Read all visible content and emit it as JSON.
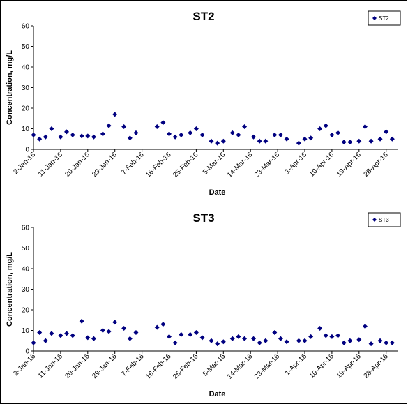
{
  "chart_data": [
    {
      "type": "scatter",
      "title": "ST2",
      "xlabel": "Date",
      "ylabel": "Concentration, mg/L",
      "ylim": [
        0,
        60
      ],
      "yticks": [
        "0",
        "10",
        "20",
        "30",
        "40",
        "50",
        "60"
      ],
      "xlim": [
        "2-Jan-16",
        "2-May-16"
      ],
      "xticks": [
        "2-Jan-16",
        "11-Jan-16",
        "20-Jan-16",
        "29-Jan-16",
        "7-Feb-16",
        "16-Feb-16",
        "25-Feb-16",
        "5-Mar-16",
        "14-Mar-16",
        "23-Mar-16",
        "1-Apr-16",
        "10-Apr-16",
        "19-Apr-16",
        "28-Apr-16"
      ],
      "grid": false,
      "legend": "top-right",
      "marker_color": "#000080",
      "series": [
        {
          "name": "ST2",
          "x": [
            "2-Jan-16",
            "4-Jan-16",
            "6-Jan-16",
            "8-Jan-16",
            "11-Jan-16",
            "13-Jan-16",
            "15-Jan-16",
            "18-Jan-16",
            "20-Jan-16",
            "22-Jan-16",
            "25-Jan-16",
            "27-Jan-16",
            "29-Jan-16",
            "1-Feb-16",
            "3-Feb-16",
            "5-Feb-16",
            "12-Feb-16",
            "14-Feb-16",
            "16-Feb-16",
            "18-Feb-16",
            "20-Feb-16",
            "23-Feb-16",
            "25-Feb-16",
            "27-Feb-16",
            "1-Mar-16",
            "3-Mar-16",
            "5-Mar-16",
            "8-Mar-16",
            "10-Mar-16",
            "12-Mar-16",
            "15-Mar-16",
            "17-Mar-16",
            "19-Mar-16",
            "22-Mar-16",
            "24-Mar-16",
            "26-Mar-16",
            "30-Mar-16",
            "1-Apr-16",
            "3-Apr-16",
            "6-Apr-16",
            "8-Apr-16",
            "10-Apr-16",
            "12-Apr-16",
            "14-Apr-16",
            "16-Apr-16",
            "19-Apr-16",
            "21-Apr-16",
            "23-Apr-16",
            "26-Apr-16",
            "28-Apr-16",
            "30-Apr-16"
          ],
          "y": [
            7,
            5,
            6,
            10,
            6,
            8.5,
            7,
            6.5,
            6.5,
            6,
            7.5,
            11.5,
            17,
            11,
            5.5,
            8,
            11,
            13,
            7.5,
            6,
            7,
            8,
            10,
            7,
            4,
            3,
            4,
            8,
            7,
            11,
            6,
            4,
            4,
            7,
            7,
            5,
            3,
            5,
            5.5,
            10,
            11.5,
            7,
            8,
            3.5,
            3.5,
            4,
            11,
            4,
            5,
            8.5,
            5
          ]
        }
      ]
    },
    {
      "type": "scatter",
      "title": "ST3",
      "xlabel": "Date",
      "ylabel": "Concentration, mg/L",
      "ylim": [
        0,
        60
      ],
      "yticks": [
        "0",
        "10",
        "20",
        "30",
        "40",
        "50",
        "60"
      ],
      "xlim": [
        "2-Jan-16",
        "2-May-16"
      ],
      "xticks": [
        "2-Jan-16",
        "11-Jan-16",
        "20-Jan-16",
        "29-Jan-16",
        "7-Feb-16",
        "16-Feb-16",
        "25-Feb-16",
        "5-Mar-16",
        "14-Mar-16",
        "23-Mar-16",
        "1-Apr-16",
        "10-Apr-16",
        "19-Apr-16",
        "28-Apr-16"
      ],
      "grid": false,
      "legend": "top-right",
      "marker_color": "#000080",
      "series": [
        {
          "name": "ST3",
          "x": [
            "2-Jan-16",
            "4-Jan-16",
            "6-Jan-16",
            "8-Jan-16",
            "11-Jan-16",
            "13-Jan-16",
            "15-Jan-16",
            "18-Jan-16",
            "20-Jan-16",
            "22-Jan-16",
            "25-Jan-16",
            "27-Jan-16",
            "29-Jan-16",
            "1-Feb-16",
            "3-Feb-16",
            "5-Feb-16",
            "12-Feb-16",
            "14-Feb-16",
            "16-Feb-16",
            "18-Feb-16",
            "20-Feb-16",
            "23-Feb-16",
            "25-Feb-16",
            "27-Feb-16",
            "1-Mar-16",
            "3-Mar-16",
            "5-Mar-16",
            "8-Mar-16",
            "10-Mar-16",
            "12-Mar-16",
            "15-Mar-16",
            "17-Mar-16",
            "19-Mar-16",
            "22-Mar-16",
            "24-Mar-16",
            "26-Mar-16",
            "30-Mar-16",
            "1-Apr-16",
            "3-Apr-16",
            "6-Apr-16",
            "8-Apr-16",
            "10-Apr-16",
            "12-Apr-16",
            "14-Apr-16",
            "16-Apr-16",
            "19-Apr-16",
            "21-Apr-16",
            "23-Apr-16",
            "26-Apr-16",
            "28-Apr-16",
            "30-Apr-16"
          ],
          "y": [
            4,
            9,
            5,
            8.5,
            7.5,
            8.5,
            7.5,
            14.5,
            6.5,
            6,
            10,
            9.5,
            14,
            11,
            6,
            9,
            11.5,
            13,
            7,
            4,
            8,
            8,
            9,
            6.5,
            5,
            3.5,
            4.5,
            6,
            7,
            6,
            6,
            4,
            5,
            9,
            6,
            4.5,
            5,
            5,
            7,
            11,
            7.5,
            7,
            7.5,
            4,
            5,
            5.5,
            12,
            3.5,
            5,
            4,
            4
          ]
        }
      ]
    }
  ]
}
